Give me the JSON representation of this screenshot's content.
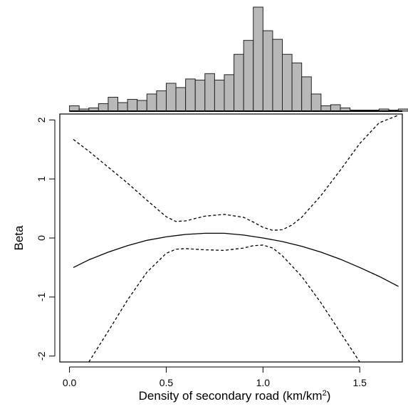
{
  "chart_data": [
    {
      "type": "bar",
      "role": "histogram",
      "bin_width": 0.05,
      "bin_starts": [
        0.0,
        0.05,
        0.1,
        0.15,
        0.2,
        0.25,
        0.3,
        0.35,
        0.4,
        0.45,
        0.5,
        0.55,
        0.6,
        0.65,
        0.7,
        0.75,
        0.8,
        0.85,
        0.9,
        0.95,
        1.0,
        1.05,
        1.1,
        1.15,
        1.2,
        1.25,
        1.3,
        1.35,
        1.4,
        1.45,
        1.5,
        1.55,
        1.6,
        1.65,
        1.7
      ],
      "counts": [
        5,
        2,
        3,
        7,
        13,
        8,
        11,
        10,
        16,
        19,
        26,
        22,
        30,
        29,
        35,
        29,
        34,
        53,
        66,
        97,
        75,
        67,
        53,
        45,
        32,
        16,
        5,
        6,
        3,
        1,
        1,
        1,
        2,
        1,
        2
      ],
      "color": "#b8b8b8"
    },
    {
      "type": "line",
      "xlabel": "Density of secondary road (km/km",
      "xlabel_superscript": "2",
      "xlabel_suffix": ")",
      "ylabel": "Beta",
      "xlim": [
        -0.05,
        1.72
      ],
      "ylim": [
        -2.1,
        2.1
      ],
      "x_ticks": [
        0.0,
        0.5,
        1.0,
        1.5
      ],
      "x_tick_labels": [
        "0.0",
        "0.5",
        "1.0",
        "1.5"
      ],
      "y_ticks": [
        -2,
        -1,
        0,
        1,
        2
      ],
      "y_tick_labels": [
        "-2",
        "-1",
        "0",
        "1",
        "2"
      ],
      "grid": false,
      "series": [
        {
          "style": "solid",
          "x": [
            0.02,
            0.1,
            0.2,
            0.3,
            0.4,
            0.5,
            0.6,
            0.7,
            0.8,
            0.9,
            1.0,
            1.1,
            1.2,
            1.3,
            1.4,
            1.5,
            1.6,
            1.7
          ],
          "y": [
            -0.5,
            -0.37,
            -0.24,
            -0.13,
            -0.04,
            0.02,
            0.06,
            0.08,
            0.08,
            0.05,
            0.0,
            -0.06,
            -0.14,
            -0.24,
            -0.36,
            -0.5,
            -0.65,
            -0.82
          ]
        },
        {
          "style": "dashed",
          "x": [
            0.02,
            0.1,
            0.2,
            0.3,
            0.4,
            0.5,
            0.55,
            0.6,
            0.7,
            0.8,
            0.9,
            0.95,
            1.0,
            1.05,
            1.1,
            1.15,
            1.2,
            1.3,
            1.4,
            1.5,
            1.6,
            1.7
          ],
          "y": [
            1.67,
            1.47,
            1.2,
            0.93,
            0.64,
            0.36,
            0.28,
            0.29,
            0.37,
            0.4,
            0.35,
            0.27,
            0.18,
            0.13,
            0.14,
            0.22,
            0.35,
            0.72,
            1.15,
            1.6,
            1.95,
            2.08
          ]
        },
        {
          "style": "dashed",
          "x": [
            0.1,
            0.2,
            0.3,
            0.4,
            0.5,
            0.55,
            0.6,
            0.7,
            0.8,
            0.9,
            0.95,
            1.0,
            1.05,
            1.1,
            1.2,
            1.3,
            1.4,
            1.5
          ],
          "y": [
            -2.1,
            -1.58,
            -1.05,
            -0.58,
            -0.26,
            -0.19,
            -0.18,
            -0.2,
            -0.21,
            -0.17,
            -0.13,
            -0.12,
            -0.17,
            -0.3,
            -0.65,
            -1.1,
            -1.6,
            -2.1
          ]
        }
      ]
    }
  ]
}
